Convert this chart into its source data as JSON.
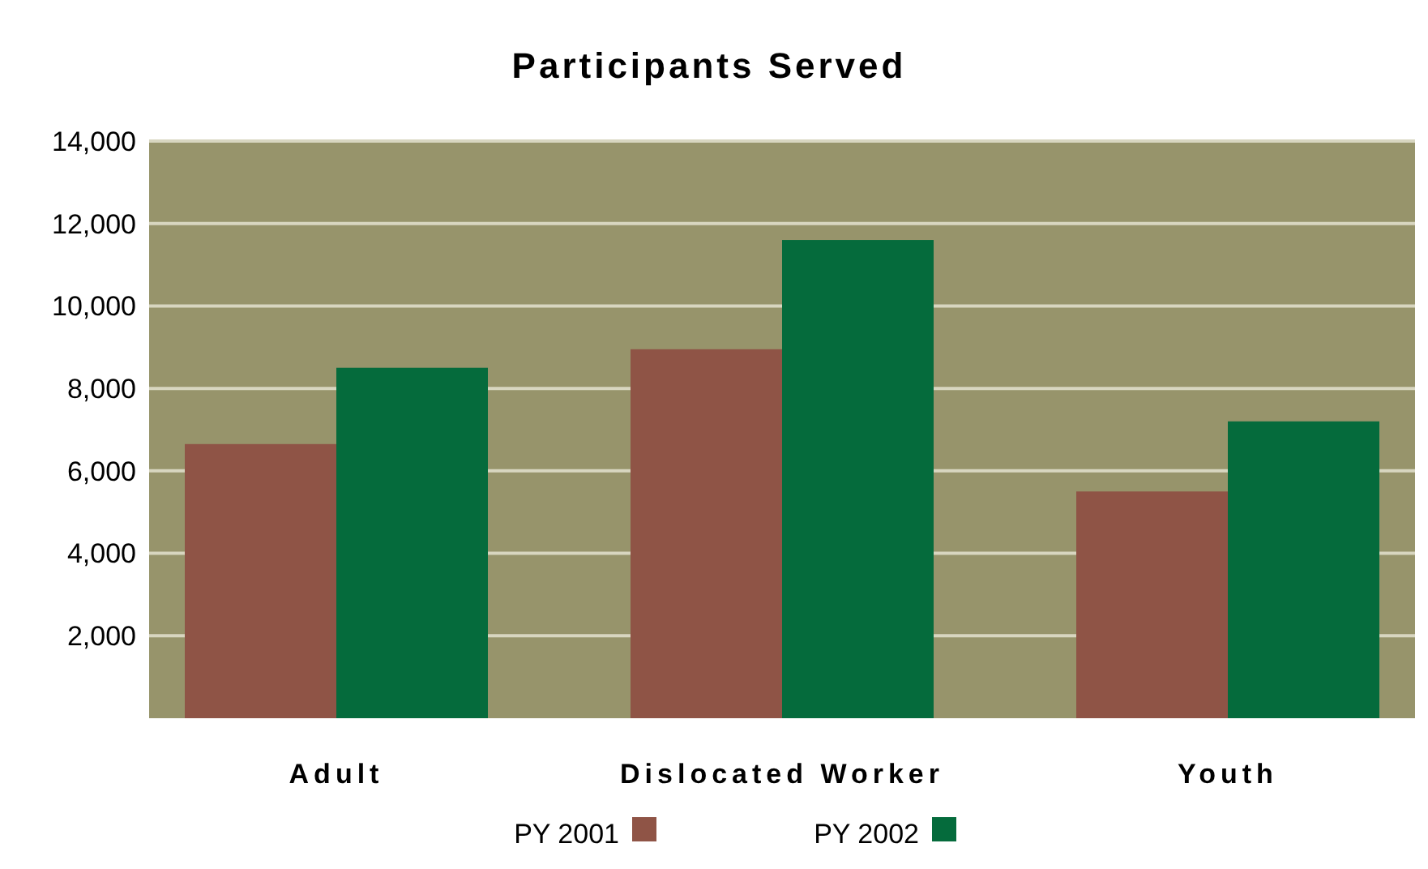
{
  "chart_data": {
    "type": "bar",
    "title": "Participants Served",
    "categories": [
      "Adult",
      "Dislocated Worker",
      "Youth"
    ],
    "series": [
      {
        "name": "PY 2001",
        "color": "#8f5446",
        "values": [
          6650,
          8950,
          5500
        ]
      },
      {
        "name": "PY 2002",
        "color": "#056b3c",
        "values": [
          8500,
          11600,
          7200
        ]
      }
    ],
    "ylim": [
      0,
      14000
    ],
    "yticks": [
      {
        "value": 2000,
        "label": "2,000"
      },
      {
        "value": 4000,
        "label": "4,000"
      },
      {
        "value": 6000,
        "label": "6,000"
      },
      {
        "value": 8000,
        "label": "8,000"
      },
      {
        "value": 10000,
        "label": "10,000"
      },
      {
        "value": 12000,
        "label": "12,000"
      },
      {
        "value": 14000,
        "label": "14,000"
      }
    ],
    "grid": "y",
    "legend": "bottom"
  }
}
